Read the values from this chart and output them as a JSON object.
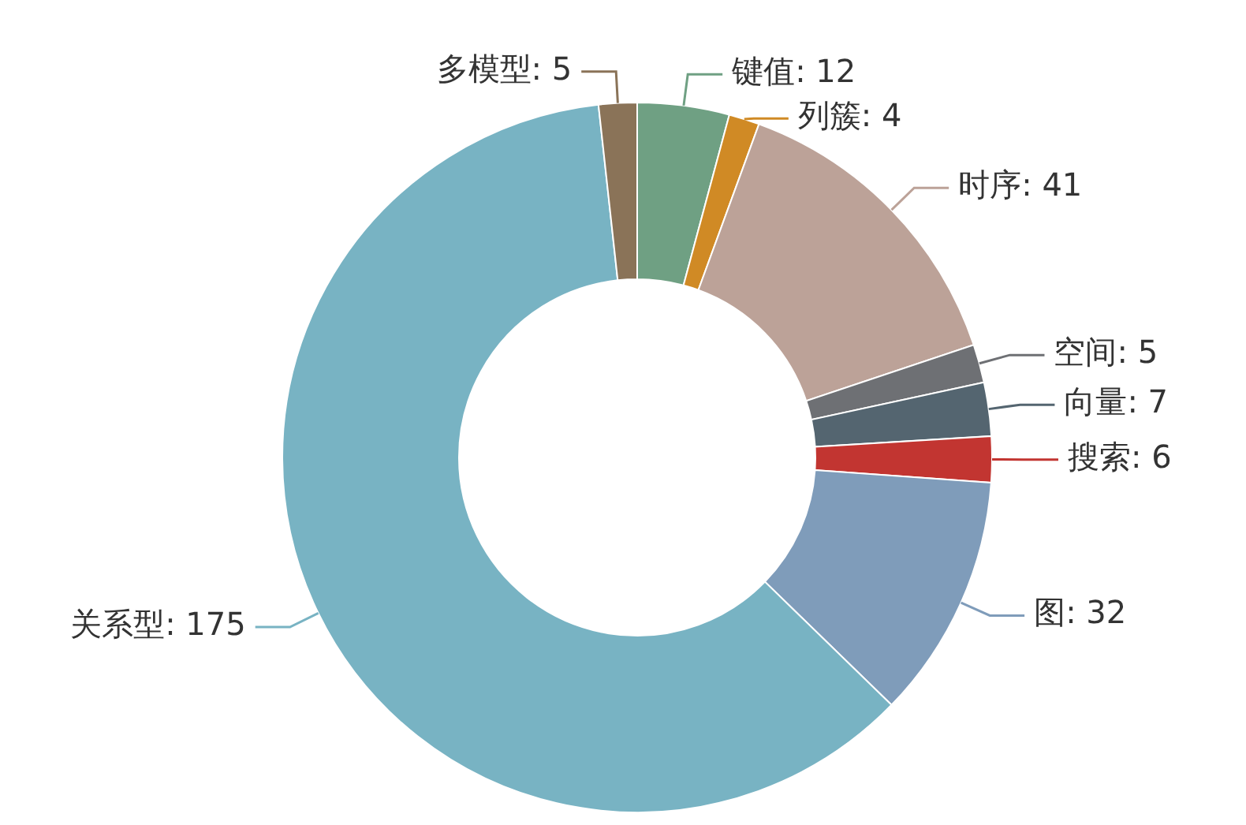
{
  "chart_data": {
    "type": "donut",
    "categories": [
      "键值",
      "列簇",
      "时序",
      "空间",
      "向量",
      "搜索",
      "图",
      "关系型",
      "多模型"
    ],
    "values": [
      12,
      4,
      41,
      5,
      7,
      6,
      32,
      175,
      5
    ],
    "colors": [
      "#6fa083",
      "#d08a25",
      "#bca298",
      "#6e7074",
      "#546570",
      "#c23531",
      "#7f9cba",
      "#78b3c3",
      "#8a7358"
    ],
    "value_labels": [
      ": 12",
      ": 4",
      ": 41",
      ": 5",
      ": 7",
      ": 6",
      ": 32",
      ": 175",
      ": 5"
    ]
  }
}
